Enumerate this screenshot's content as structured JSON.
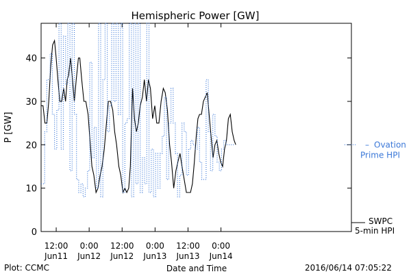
{
  "chart_data": {
    "type": "line",
    "title": "Hemispheric Power [GW]",
    "xlabel": "Date and Time",
    "ylabel": "P [GW]",
    "ylim": [
      0,
      48
    ],
    "xlim_hours": [
      6.5,
      119.5
    ],
    "grid": false,
    "y_ticks": [
      0,
      10,
      20,
      30,
      40
    ],
    "x_ticks": [
      {
        "hour": 12,
        "time": "12:00",
        "date": "Jun11"
      },
      {
        "hour": 24,
        "time": "0:00",
        "date": "Jun12"
      },
      {
        "hour": 36,
        "time": "12:00",
        "date": "Jun12"
      },
      {
        "hour": 48,
        "time": "0:00",
        "date": "Jun13"
      },
      {
        "hour": 60,
        "time": "12:00",
        "date": "Jun13"
      },
      {
        "hour": 72,
        "time": "0:00",
        "date": "Jun14"
      }
    ],
    "x_unit_note": "x values are hours after 2016-06-11 00:00",
    "series": [
      {
        "name": "SWPC 5-min HPI",
        "name_lines": [
          "SWPC",
          "5-min HPI"
        ],
        "color": "#000000",
        "style": "solid",
        "x": [
          6.5,
          7.2,
          7.9,
          8.6,
          9.3,
          10.0,
          10.7,
          11.4,
          12.0,
          12.6,
          13.3,
          14.0,
          14.7,
          15.4,
          16.0,
          16.5,
          17.2,
          17.8,
          18.6,
          19.3,
          20.1,
          20.6,
          21.3,
          22.1,
          22.8,
          23.6,
          24.3,
          25.0,
          25.7,
          26.5,
          27.2,
          28.0,
          28.7,
          29.5,
          30.3,
          31.0,
          31.8,
          32.6,
          33.3,
          34.0,
          34.8,
          35.5,
          36.3,
          37.0,
          37.7,
          38.4,
          39.0,
          39.8,
          40.5,
          41.2,
          41.9,
          42.6,
          43.4,
          44.1,
          44.9,
          45.6,
          46.3,
          47.1,
          47.9,
          48.6,
          49.4,
          50.2,
          51.0,
          51.7,
          52.5,
          53.3,
          54.0,
          54.8,
          55.6,
          56.3,
          57.1,
          57.8,
          58.6,
          59.4,
          60.2,
          60.9,
          61.6,
          62.3,
          63.0,
          63.6,
          64.2,
          64.9,
          65.6,
          66.3,
          67.0,
          67.7,
          68.4,
          69.1,
          69.8,
          70.5,
          71.2,
          71.9,
          72.6,
          73.3,
          74.0,
          74.7,
          75.4,
          76.1,
          76.8,
          77.4
        ],
        "y": [
          29,
          29,
          25,
          25,
          30,
          38,
          43,
          44,
          40,
          35,
          30,
          30,
          33,
          30,
          35,
          36,
          40,
          36,
          30,
          35,
          40,
          40,
          35,
          30,
          30,
          27,
          21,
          15,
          13,
          9,
          10,
          13,
          15,
          19,
          25,
          30,
          30,
          28,
          23,
          20,
          15,
          13,
          9,
          10,
          9,
          10,
          15,
          33,
          26,
          23,
          25,
          29,
          31,
          35,
          30,
          35,
          33,
          26,
          29,
          25,
          25,
          30,
          33,
          32,
          28,
          20,
          16,
          10,
          14,
          16,
          18,
          15,
          12,
          9,
          9,
          9,
          11,
          16,
          22,
          26,
          27,
          27,
          30,
          31,
          32,
          27,
          22,
          17,
          20,
          21,
          18,
          16,
          15,
          19,
          21,
          26,
          27,
          23,
          21,
          20
        ]
      },
      {
        "name": "Ovation Prime HPI",
        "name_lines": [
          "Ovation",
          "Prime HPI"
        ],
        "color": "#3b78d8",
        "style": "dotted-step",
        "x": [
          6.5,
          7.8,
          8.6,
          9.8,
          10.6,
          11.4,
          12.2,
          13.0,
          13.8,
          14.6,
          15.4,
          16.2,
          17.0,
          17.8,
          18.6,
          19.4,
          20.2,
          21.0,
          21.8,
          22.6,
          23.4,
          24.2,
          25.0,
          25.8,
          26.6,
          27.4,
          28.2,
          29.0,
          29.8,
          30.6,
          31.4,
          32.2,
          33.0,
          33.8,
          34.6,
          35.4,
          36.2,
          37.0,
          37.8,
          38.6,
          39.4,
          40.2,
          41.0,
          41.8,
          42.6,
          43.4,
          44.2,
          45.0,
          45.8,
          46.6,
          47.4,
          48.2,
          49.0,
          49.8,
          50.6,
          51.4,
          52.2,
          53.0,
          53.8,
          54.6,
          55.4,
          56.2,
          57.0,
          57.8,
          58.6,
          59.4,
          60.2,
          61.0,
          61.8,
          62.6,
          63.4,
          64.2,
          65.0,
          65.8,
          66.6,
          67.4,
          68.2,
          69.0,
          69.8,
          70.6,
          71.4,
          72.2,
          73.0,
          73.8,
          74.6,
          75.4,
          76.2,
          77.0
        ],
        "y": [
          11,
          23,
          35,
          41,
          27,
          19,
          28,
          48,
          19,
          45,
          34,
          48,
          14,
          48,
          27,
          12,
          9,
          11,
          8,
          10,
          14,
          39,
          17,
          24,
          10,
          48,
          8,
          35,
          48,
          23,
          29,
          48,
          30,
          48,
          27,
          48,
          9,
          25,
          26,
          48,
          8,
          48,
          11,
          48,
          9,
          17,
          11,
          48,
          9,
          19,
          8,
          18,
          10,
          18,
          22,
          31,
          12,
          25,
          33,
          25,
          18,
          8,
          13,
          25,
          23,
          13,
          19,
          21,
          20,
          19,
          24,
          16,
          12,
          12,
          35,
          23,
          14,
          27,
          22,
          16,
          14,
          19,
          21,
          20,
          20,
          20,
          20,
          20
        ]
      }
    ]
  },
  "footer": {
    "plot_credit": "Plot: CCMC",
    "timestamp": "2016/06/14 07:05:22"
  }
}
